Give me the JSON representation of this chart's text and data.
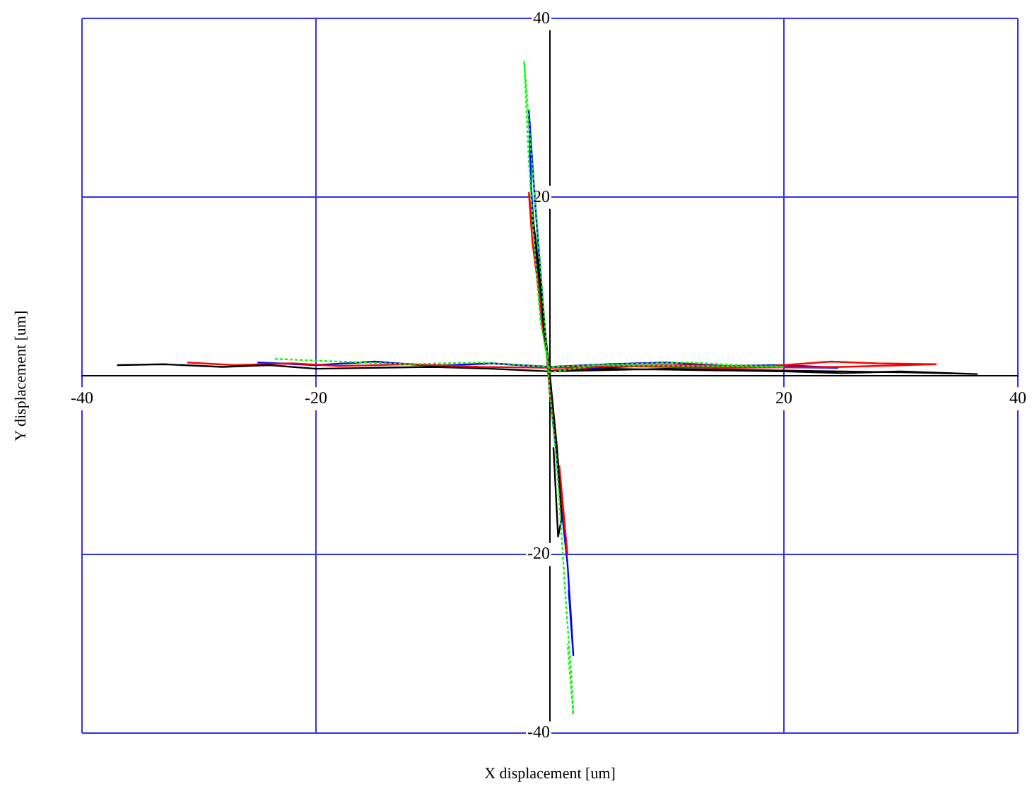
{
  "chart_data": {
    "type": "line",
    "xlabel": "X displacement [um]",
    "ylabel": "Y displacement [um]",
    "xlim": [
      -40,
      40
    ],
    "ylim": [
      -40,
      40
    ],
    "xticks": [
      -40,
      -20,
      {
        "value": 0,
        "label": null
      },
      20,
      40
    ],
    "yticks": [
      -40,
      -20,
      {
        "value": 0,
        "label": null
      },
      20,
      40
    ],
    "grid": true,
    "legend": false,
    "marker": "none",
    "series": [
      {
        "color": "#000000",
        "line_style": "solid",
        "x": [
          -37,
          -33,
          -28,
          -24,
          -20,
          -15,
          -10,
          -5,
          0,
          5,
          10,
          15,
          20,
          25,
          30,
          36.5,
          30,
          20,
          10,
          0,
          -0.5,
          -0.8,
          -1.2,
          -1.5,
          -1.0,
          -0.5,
          0,
          0.3,
          0.6,
          0.8,
          1.0,
          0.7,
          0.3
        ],
        "values": [
          1.2,
          1.3,
          1.0,
          1.2,
          0.8,
          0.9,
          1.0,
          0.8,
          0.5,
          0.8,
          0.7,
          0.6,
          0.5,
          0.3,
          0.5,
          0.2,
          0.4,
          0.6,
          0.8,
          0.5,
          5,
          10,
          15,
          18,
          12,
          6,
          0,
          -4,
          -8,
          -12,
          -16,
          -18,
          -8
        ]
      },
      {
        "color": "#ff0000",
        "line_style": "solid",
        "x": [
          -31,
          -27,
          -22,
          -18,
          -12,
          -6,
          0,
          6,
          12,
          18,
          24,
          28,
          33,
          25,
          15,
          5,
          0,
          -0.6,
          -1.0,
          -1.5,
          -1.8,
          -1.2,
          -0.5,
          0,
          0.4,
          0.8,
          1.2,
          1.5,
          0.8
        ],
        "values": [
          1.5,
          1.2,
          1.4,
          1.1,
          1.3,
          1.0,
          0.9,
          1.1,
          1.2,
          1.0,
          1.6,
          1.4,
          1.3,
          1.0,
          0.9,
          1.1,
          0.6,
          5,
          10,
          15,
          20.5,
          14,
          6,
          -2,
          -6,
          -11,
          -16,
          -20,
          -10
        ]
      },
      {
        "color": "#00ff00",
        "line_style": "dotted",
        "x": [
          -23.5,
          -18,
          -12,
          -6,
          0,
          6,
          12,
          16,
          20,
          12,
          4,
          0,
          -0.8,
          -1.3,
          -1.8,
          -2.2,
          -1.6,
          -0.8,
          0,
          0.6,
          1.0,
          1.4,
          1.8,
          2.0,
          1.5
        ],
        "values": [
          1.9,
          1.6,
          1.3,
          1.5,
          1.0,
          1.3,
          1.5,
          1.2,
          1.0,
          1.1,
          1.2,
          0.4,
          6,
          14,
          24,
          35.2,
          25,
          12,
          -2,
          -10,
          -18,
          -26,
          -33,
          -37.9,
          -30
        ]
      },
      {
        "color": "#0000ff",
        "line_style": "solid",
        "x": [
          -25,
          -20,
          -15,
          -10,
          -5,
          0,
          5,
          10,
          15,
          20,
          24.6,
          18,
          10,
          2,
          0,
          -0.7,
          -1.2,
          -1.6,
          -1.8,
          -1.3,
          -0.6,
          0,
          0.5,
          1.0,
          1.5,
          1.8,
          2.0,
          1.6
        ],
        "values": [
          1.5,
          1.2,
          1.6,
          1.1,
          1.4,
          1.0,
          1.3,
          1.5,
          1.1,
          1.2,
          0.9,
          1.0,
          1.2,
          0.8,
          0.5,
          6,
          13,
          21,
          29.7,
          20,
          8,
          -2,
          -8,
          -15,
          -21,
          -27,
          -31.3,
          -24
        ]
      }
    ]
  }
}
